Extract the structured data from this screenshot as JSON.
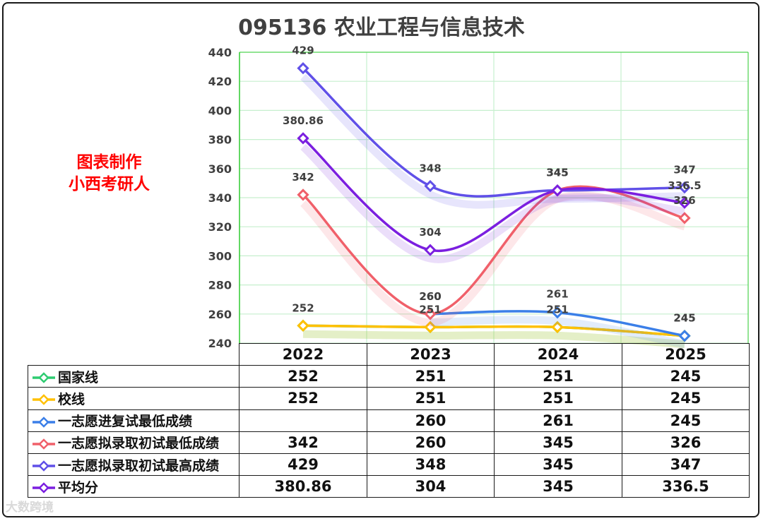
{
  "title": "095136 农业工程与信息技术",
  "watermark": {
    "line1": "图表制作",
    "line2": "小西考研人"
  },
  "source_mark": "大数跨境",
  "colors": {
    "grid": "#c6efce",
    "axis": "#33cc33"
  },
  "chart_data": {
    "type": "line",
    "title": "095136 农业工程与信息技术",
    "xlabel": "",
    "ylabel": "",
    "categories": [
      "2022",
      "2023",
      "2024",
      "2025"
    ],
    "ylim": [
      240,
      440
    ],
    "yticks": [
      240,
      260,
      280,
      300,
      320,
      340,
      360,
      380,
      400,
      420,
      440
    ],
    "grid": true,
    "legend": "data table (bottom)",
    "series": [
      {
        "name": "国家线",
        "color": "#2ecc71",
        "values": [
          252,
          251,
          251,
          245
        ],
        "labels": [
          "252",
          "251",
          "251",
          "245"
        ],
        "show_data_labels": false
      },
      {
        "name": "校线",
        "color": "#ffc000",
        "values": [
          252,
          251,
          251,
          245
        ],
        "labels": [
          "252",
          "251",
          "251",
          "245"
        ],
        "show_data_labels": true
      },
      {
        "name": "一志愿进复试最低成绩",
        "color": "#3b7fe8",
        "values": [
          null,
          260,
          261,
          245
        ],
        "labels": [
          "",
          "260",
          "261",
          "245"
        ],
        "show_data_labels": true
      },
      {
        "name": "一志愿拟录取初试最低成绩",
        "color": "#f0606a",
        "values": [
          342,
          260,
          345,
          326
        ],
        "labels": [
          "342",
          "260",
          "345",
          "326"
        ],
        "show_data_labels": true
      },
      {
        "name": "一志愿拟录取初试最高成绩",
        "color": "#6050e8",
        "values": [
          429,
          348,
          345,
          347
        ],
        "labels": [
          "429",
          "348",
          "345",
          "347"
        ],
        "show_data_labels": true
      },
      {
        "name": "平均分",
        "color": "#7b1fe0",
        "values": [
          380.86,
          304,
          345,
          336.5
        ],
        "labels": [
          "380.86",
          "304",
          "345",
          "336.5"
        ],
        "show_data_labels": true
      }
    ]
  }
}
